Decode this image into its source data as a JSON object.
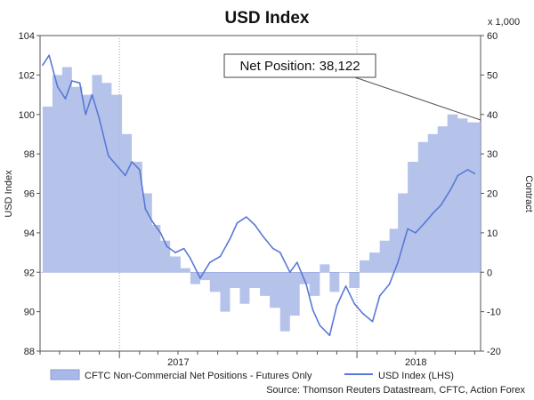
{
  "chart_data": {
    "type": "area+line",
    "title": "USD Index",
    "left_axis": {
      "label": "USD Index",
      "min": 88,
      "max": 104,
      "ticks": [
        104,
        102,
        100,
        98,
        96,
        94,
        92,
        90,
        88
      ]
    },
    "right_axis": {
      "label": "Contract",
      "multiplier_label": "x 1,000",
      "min": -20,
      "max": 60,
      "ticks": [
        60,
        50,
        40,
        30,
        20,
        10,
        0,
        -10,
        -20
      ]
    },
    "x_axis": {
      "start": "2016-09",
      "end": "2018-07",
      "year_labels": [
        "2017",
        "2018"
      ]
    },
    "gridlines": "vertical dashed at year starts",
    "callout": {
      "text": "Net Position: 38,122"
    },
    "series": [
      {
        "name": "CFTC Non-Commercial Net Positions - Futures Only",
        "axis": "right",
        "type": "area",
        "color": "#a8b8e8",
        "points": [
          [
            "2016-09-05",
            42
          ],
          [
            "2016-09-20",
            50
          ],
          [
            "2016-10-05",
            52
          ],
          [
            "2016-10-20",
            47
          ],
          [
            "2016-11-05",
            45
          ],
          [
            "2016-11-20",
            50
          ],
          [
            "2016-12-05",
            48
          ],
          [
            "2016-12-20",
            45
          ],
          [
            "2017-01-05",
            35
          ],
          [
            "2017-01-20",
            28
          ],
          [
            "2017-02-05",
            20
          ],
          [
            "2017-02-20",
            12
          ],
          [
            "2017-03-05",
            8
          ],
          [
            "2017-03-20",
            4
          ],
          [
            "2017-04-05",
            1
          ],
          [
            "2017-04-20",
            -3
          ],
          [
            "2017-05-05",
            -2
          ],
          [
            "2017-05-20",
            -5
          ],
          [
            "2017-06-05",
            -10
          ],
          [
            "2017-06-20",
            -4
          ],
          [
            "2017-07-05",
            -8
          ],
          [
            "2017-07-20",
            -4
          ],
          [
            "2017-08-05",
            -6
          ],
          [
            "2017-08-20",
            -9
          ],
          [
            "2017-09-05",
            -15
          ],
          [
            "2017-09-20",
            -11
          ],
          [
            "2017-10-05",
            -3
          ],
          [
            "2017-10-20",
            -6
          ],
          [
            "2017-11-05",
            2
          ],
          [
            "2017-11-20",
            -5
          ],
          [
            "2017-12-05",
            0
          ],
          [
            "2017-12-20",
            -4
          ],
          [
            "2018-01-05",
            3
          ],
          [
            "2018-01-20",
            5
          ],
          [
            "2018-02-05",
            8
          ],
          [
            "2018-02-20",
            11
          ],
          [
            "2018-03-05",
            20
          ],
          [
            "2018-03-20",
            28
          ],
          [
            "2018-04-05",
            33
          ],
          [
            "2018-04-20",
            35
          ],
          [
            "2018-05-05",
            37
          ],
          [
            "2018-05-20",
            40
          ],
          [
            "2018-06-05",
            39
          ],
          [
            "2018-06-20",
            38
          ]
        ]
      },
      {
        "name": "USD Index (LHS)",
        "axis": "left",
        "type": "line",
        "color": "#5a78d6",
        "points": [
          [
            "2016-09-05",
            102.5
          ],
          [
            "2016-09-15",
            103.0
          ],
          [
            "2016-09-28",
            101.4
          ],
          [
            "2016-10-10",
            100.8
          ],
          [
            "2016-10-20",
            101.7
          ],
          [
            "2016-11-01",
            101.6
          ],
          [
            "2016-11-10",
            100.0
          ],
          [
            "2016-11-20",
            101.0
          ],
          [
            "2016-12-01",
            99.8
          ],
          [
            "2016-12-15",
            97.9
          ],
          [
            "2016-12-28",
            97.4
          ],
          [
            "2017-01-10",
            96.9
          ],
          [
            "2017-01-20",
            97.6
          ],
          [
            "2017-02-01",
            97.2
          ],
          [
            "2017-02-10",
            95.2
          ],
          [
            "2017-02-20",
            94.6
          ],
          [
            "2017-03-05",
            94.0
          ],
          [
            "2017-03-15",
            93.3
          ],
          [
            "2017-03-28",
            93.0
          ],
          [
            "2017-04-10",
            93.2
          ],
          [
            "2017-04-20",
            92.7
          ],
          [
            "2017-05-05",
            91.7
          ],
          [
            "2017-05-20",
            92.5
          ],
          [
            "2017-06-05",
            92.8
          ],
          [
            "2017-06-20",
            93.7
          ],
          [
            "2017-07-01",
            94.5
          ],
          [
            "2017-07-15",
            94.8
          ],
          [
            "2017-07-28",
            94.4
          ],
          [
            "2017-08-10",
            93.8
          ],
          [
            "2017-08-25",
            93.2
          ],
          [
            "2017-09-05",
            93.0
          ],
          [
            "2017-09-20",
            92.0
          ],
          [
            "2017-10-01",
            92.5
          ],
          [
            "2017-10-15",
            91.4
          ],
          [
            "2017-10-25",
            90.1
          ],
          [
            "2017-11-05",
            89.3
          ],
          [
            "2017-11-20",
            88.8
          ],
          [
            "2017-12-01",
            90.3
          ],
          [
            "2017-12-15",
            91.3
          ],
          [
            "2017-12-28",
            90.4
          ],
          [
            "2018-01-10",
            89.9
          ],
          [
            "2018-01-25",
            89.5
          ],
          [
            "2018-02-05",
            90.8
          ],
          [
            "2018-02-20",
            91.4
          ],
          [
            "2018-03-05",
            92.5
          ],
          [
            "2018-03-20",
            94.2
          ],
          [
            "2018-04-01",
            94.0
          ],
          [
            "2018-04-15",
            94.5
          ],
          [
            "2018-04-28",
            95.0
          ],
          [
            "2018-05-10",
            95.4
          ],
          [
            "2018-05-25",
            96.2
          ],
          [
            "2018-06-05",
            96.9
          ],
          [
            "2018-06-20",
            97.2
          ],
          [
            "2018-07-01",
            97.0
          ]
        ]
      }
    ],
    "legend": [
      {
        "label": "CFTC Non-Commercial Net Positions - Futures Only",
        "swatch": "area"
      },
      {
        "label": "USD Index (LHS)",
        "swatch": "line"
      }
    ],
    "source": "Source: Thomson Reuters Datastream, CFTC, Action Forex"
  }
}
